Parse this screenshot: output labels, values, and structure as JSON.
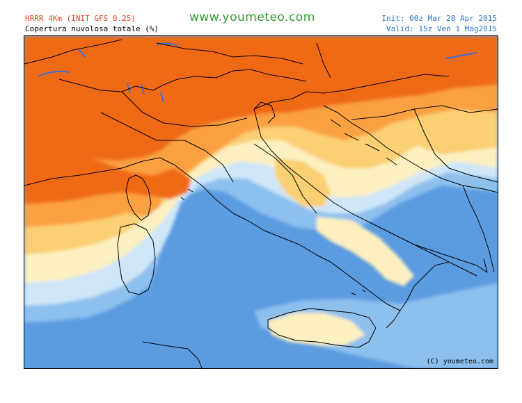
{
  "header": {
    "model_title": "HRRR 4Km (INIT GFS 0.25)",
    "map_subtitle": "Copertura nuvolosa totale (%)",
    "site_url": "www.youmeteo.com",
    "init_time": "Init: 00z Mar  28 Apr 2015",
    "valid_time": "Valid: 15z Ven  1  Mag2015"
  },
  "map": {
    "variable": "total cloud cover",
    "region": "Italy and surroundings",
    "copyright": "(C) youmeteo.com",
    "palette": {
      "sea_clear": "#5b9be0",
      "clear_light": "#8ec0ee",
      "low_cloud": "#cfe6f8",
      "light_cloud": "#fdf0c0",
      "mid_cloud": "#fbcf73",
      "high_cloud": "#fba142",
      "overcast": "#f06a16",
      "borders": "#000000",
      "lakes": "#3a6fd6"
    }
  }
}
